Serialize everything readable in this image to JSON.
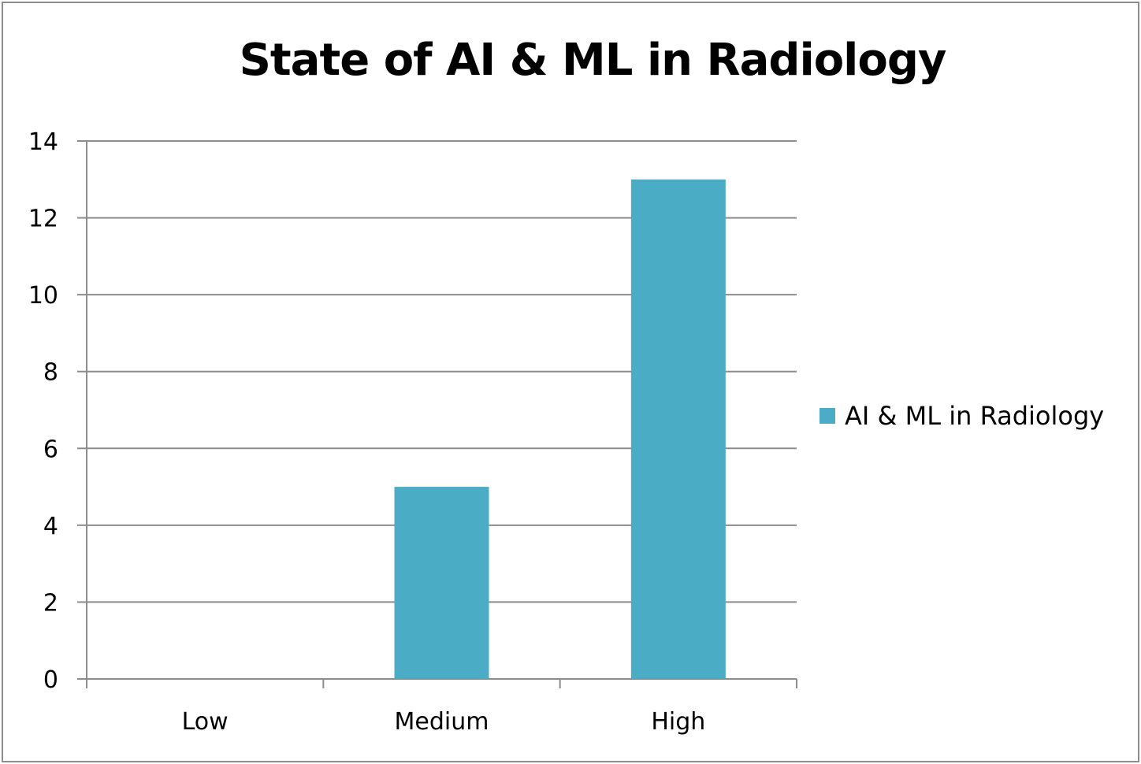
{
  "chart_data": {
    "type": "bar",
    "title": "State of AI & ML in Radiology",
    "categories": [
      "Low",
      "Medium",
      "High"
    ],
    "series": [
      {
        "name": "AI & ML in Radiology",
        "values": [
          0,
          5,
          13
        ],
        "color": "#4bacc6"
      }
    ],
    "ylim": [
      0,
      14
    ],
    "yticks": [
      0,
      2,
      4,
      6,
      8,
      10,
      12,
      14
    ],
    "grid": true,
    "legend_position": "right",
    "xlabel": "",
    "ylabel": ""
  }
}
